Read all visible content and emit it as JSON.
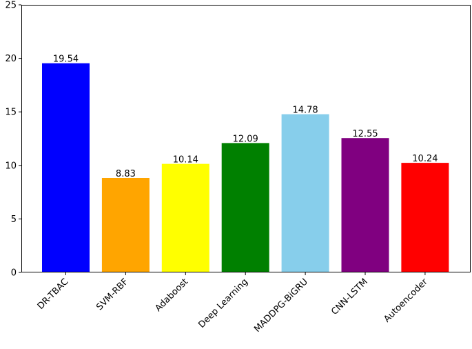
{
  "chart_data": {
    "type": "bar",
    "categories": [
      "DR-TBAC",
      "SVM-RBF",
      "Adaboost",
      "Deep Learning",
      "MADDPG-BiGRU",
      "CNN-LSTM",
      "Autoencoder"
    ],
    "values": [
      19.54,
      8.83,
      10.14,
      12.09,
      14.78,
      12.55,
      10.24
    ],
    "value_labels": [
      "19.54",
      "8.83",
      "10.14",
      "12.09",
      "14.78",
      "12.55",
      "10.24"
    ],
    "colors": [
      "#0000ff",
      "#ffa500",
      "#ffff00",
      "#008000",
      "#87ceeb",
      "#800080",
      "#ff0000"
    ],
    "yticks": [
      0,
      5,
      10,
      15,
      20,
      25
    ],
    "ylim": [
      0,
      25
    ],
    "title": "",
    "xlabel": "",
    "ylabel": "",
    "grid": false,
    "legend": false
  }
}
